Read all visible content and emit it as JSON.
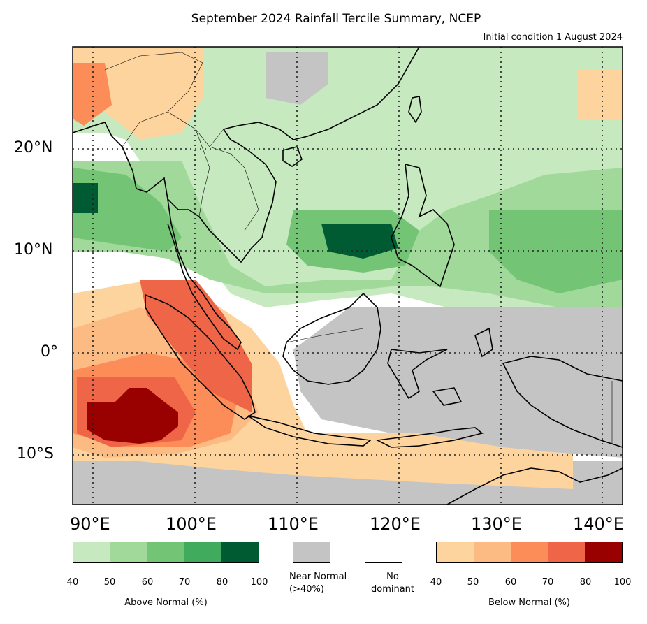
{
  "title": "September 2024 Rainfall Tercile Summary, NCEP",
  "subtitle": "Initial condition 1 August 2024",
  "lat_labels": [
    "20°N",
    "10°N",
    "0°",
    "10°S"
  ],
  "lon_labels": [
    "90°E",
    "100°E",
    "110°E",
    "120°E",
    "130°E",
    "140°E"
  ],
  "legend": {
    "above": {
      "caption": "Above Normal (%)",
      "ticks": [
        "40",
        "50",
        "60",
        "70",
        "80",
        "100"
      ],
      "colors": [
        "#c7e9c0",
        "#a1d99b",
        "#74c476",
        "#41ab5d",
        "#005a32"
      ]
    },
    "near_normal": {
      "caption": "Near Normal\n(>40%)",
      "color": "#c4c4c4"
    },
    "no_dominant": {
      "caption": "No\ndominant",
      "color": "#ffffff"
    },
    "below": {
      "caption": "Below Normal (%)",
      "ticks": [
        "40",
        "50",
        "60",
        "70",
        "80",
        "100"
      ],
      "colors": [
        "#fdd49e",
        "#fdbb84",
        "#fc8d59",
        "#ef6548",
        "#990000"
      ]
    }
  },
  "map_extent": {
    "lon": [
      86,
      140
    ],
    "lat": [
      -15,
      30
    ]
  }
}
